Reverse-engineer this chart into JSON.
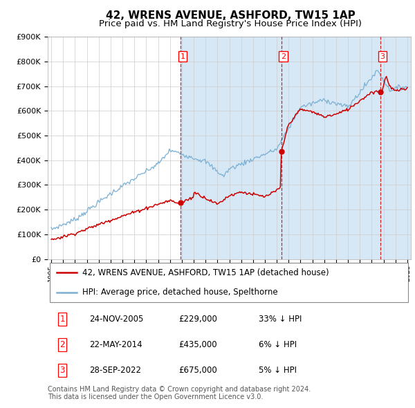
{
  "title": "42, WRENS AVENUE, ASHFORD, TW15 1AP",
  "subtitle": "Price paid vs. HM Land Registry's House Price Index (HPI)",
  "ylim": [
    0,
    900000
  ],
  "yticks": [
    0,
    100000,
    200000,
    300000,
    400000,
    500000,
    600000,
    700000,
    800000,
    900000
  ],
  "ytick_labels": [
    "£0",
    "£100K",
    "£200K",
    "£300K",
    "£400K",
    "£500K",
    "£600K",
    "£700K",
    "£800K",
    "£900K"
  ],
  "sale_year_nums": [
    2005.9167,
    2014.3833,
    2022.75
  ],
  "sale_prices": [
    229000,
    435000,
    675000
  ],
  "sale_labels": [
    "1",
    "2",
    "3"
  ],
  "legend_red": "42, WRENS AVENUE, ASHFORD, TW15 1AP (detached house)",
  "legend_blue": "HPI: Average price, detached house, Spelthorne",
  "table_data": [
    [
      "1",
      "24-NOV-2005",
      "£229,000",
      "33% ↓ HPI"
    ],
    [
      "2",
      "22-MAY-2014",
      "£435,000",
      "6% ↓ HPI"
    ],
    [
      "3",
      "28-SEP-2022",
      "£675,000",
      "5% ↓ HPI"
    ]
  ],
  "footnote": "Contains HM Land Registry data © Crown copyright and database right 2024.\nThis data is licensed under the Open Government Licence v3.0.",
  "red_color": "#cc0000",
  "blue_color": "#7ab0d4",
  "shade_color": "#d6e8f5",
  "vline_color": "#cc0000",
  "grid_color": "#cccccc",
  "dot_color": "#cc0000"
}
